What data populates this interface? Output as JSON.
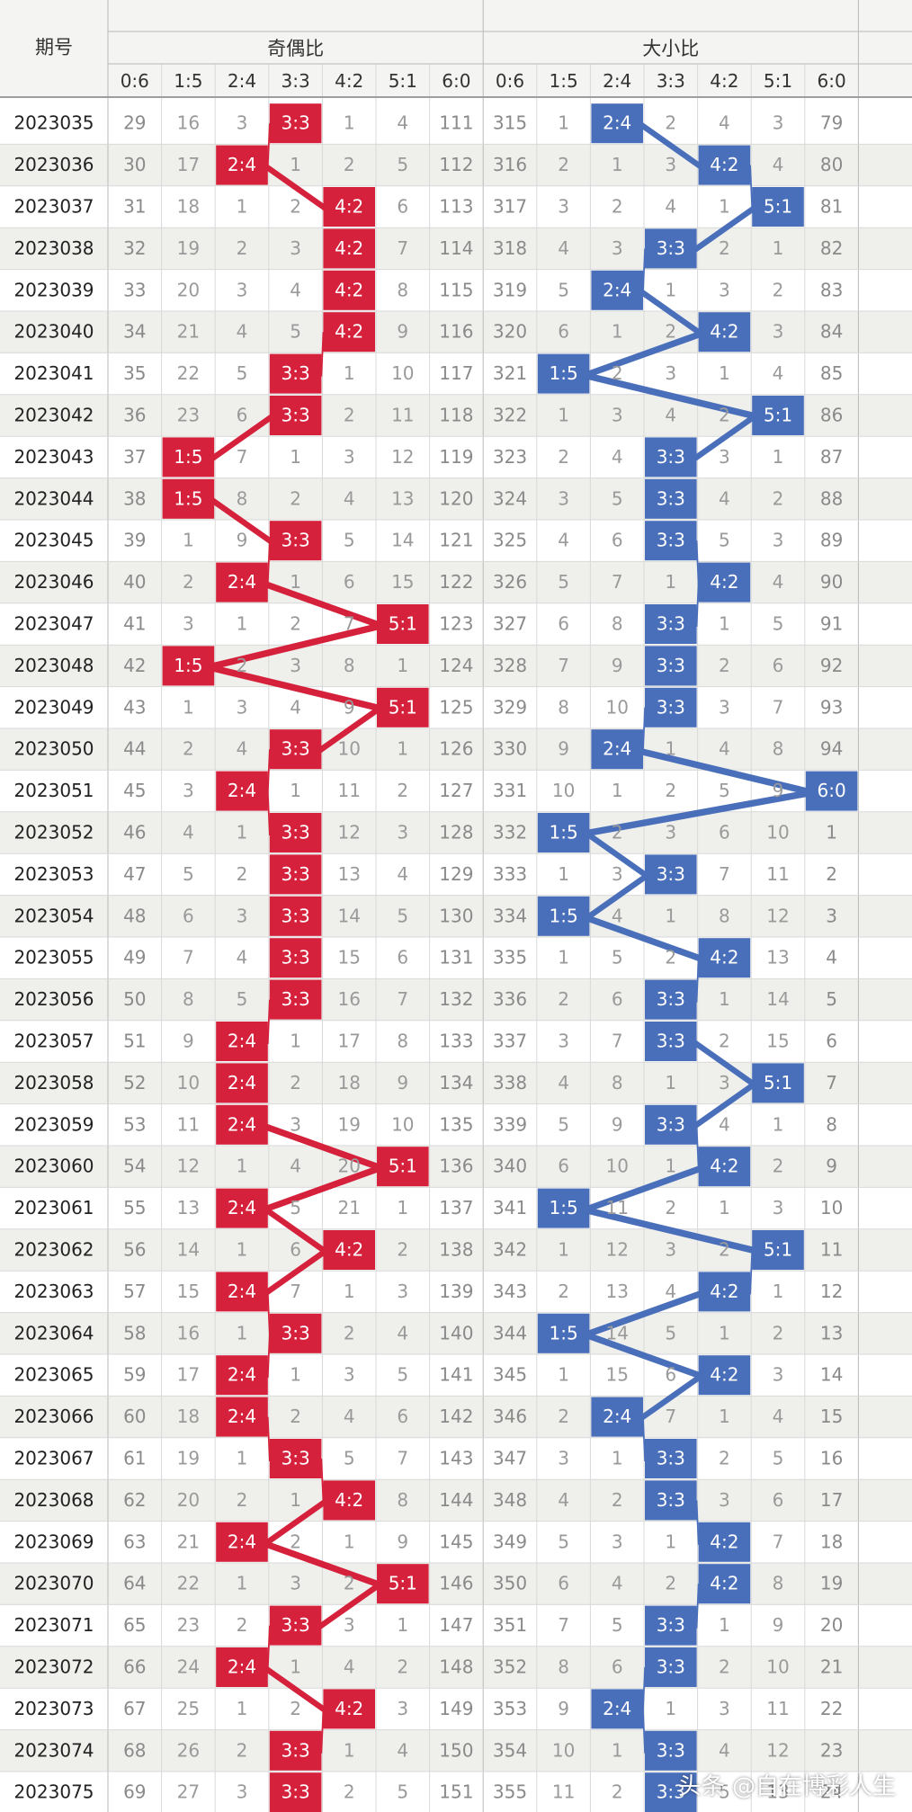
{
  "header": {
    "period_label": "期号",
    "group_odd_even": "奇偶比",
    "group_big_small": "大小比",
    "ratio_columns": [
      "0:6",
      "1:5",
      "2:4",
      "3:3",
      "4:2",
      "5:1",
      "6:0"
    ]
  },
  "watermark": "头条 @自在博彩人生",
  "colors": {
    "odd_even_hit": "#d5213b",
    "big_small_hit": "#4a6fba",
    "grid": "#d9d9d9",
    "row_alt": "#efefec",
    "text_dark": "#222222",
    "text_light": "#8a8a8a"
  },
  "chart_data": {
    "type": "table",
    "rows": [
      {
        "period": "2023035",
        "odd_even": [
          29,
          16,
          3,
          "3:3",
          1,
          4,
          111
        ],
        "big_small": [
          315,
          1,
          "2:4",
          2,
          4,
          3,
          79
        ]
      },
      {
        "period": "2023036",
        "odd_even": [
          30,
          17,
          "2:4",
          1,
          2,
          5,
          112
        ],
        "big_small": [
          316,
          2,
          1,
          3,
          "4:2",
          4,
          80
        ]
      },
      {
        "period": "2023037",
        "odd_even": [
          31,
          18,
          1,
          2,
          "4:2",
          6,
          113
        ],
        "big_small": [
          317,
          3,
          2,
          4,
          1,
          "5:1",
          81
        ]
      },
      {
        "period": "2023038",
        "odd_even": [
          32,
          19,
          2,
          3,
          "4:2",
          7,
          114
        ],
        "big_small": [
          318,
          4,
          3,
          "3:3",
          2,
          1,
          82
        ]
      },
      {
        "period": "2023039",
        "odd_even": [
          33,
          20,
          3,
          4,
          "4:2",
          8,
          115
        ],
        "big_small": [
          319,
          5,
          "2:4",
          1,
          3,
          2,
          83
        ]
      },
      {
        "period": "2023040",
        "odd_even": [
          34,
          21,
          4,
          5,
          "4:2",
          9,
          116
        ],
        "big_small": [
          320,
          6,
          1,
          2,
          "4:2",
          3,
          84
        ]
      },
      {
        "period": "2023041",
        "odd_even": [
          35,
          22,
          5,
          "3:3",
          1,
          10,
          117
        ],
        "big_small": [
          321,
          "1:5",
          2,
          3,
          1,
          4,
          85
        ]
      },
      {
        "period": "2023042",
        "odd_even": [
          36,
          23,
          6,
          "3:3",
          2,
          11,
          118
        ],
        "big_small": [
          322,
          1,
          3,
          4,
          2,
          "5:1",
          86
        ]
      },
      {
        "period": "2023043",
        "odd_even": [
          37,
          "1:5",
          7,
          1,
          3,
          12,
          119
        ],
        "big_small": [
          323,
          2,
          4,
          "3:3",
          3,
          1,
          87
        ]
      },
      {
        "period": "2023044",
        "odd_even": [
          38,
          "1:5",
          8,
          2,
          4,
          13,
          120
        ],
        "big_small": [
          324,
          3,
          5,
          "3:3",
          4,
          2,
          88
        ]
      },
      {
        "period": "2023045",
        "odd_even": [
          39,
          1,
          9,
          "3:3",
          5,
          14,
          121
        ],
        "big_small": [
          325,
          4,
          6,
          "3:3",
          5,
          3,
          89
        ]
      },
      {
        "period": "2023046",
        "odd_even": [
          40,
          2,
          "2:4",
          1,
          6,
          15,
          122
        ],
        "big_small": [
          326,
          5,
          7,
          1,
          "4:2",
          4,
          90
        ]
      },
      {
        "period": "2023047",
        "odd_even": [
          41,
          3,
          1,
          2,
          7,
          "5:1",
          123
        ],
        "big_small": [
          327,
          6,
          8,
          "3:3",
          1,
          5,
          91
        ]
      },
      {
        "period": "2023048",
        "odd_even": [
          42,
          "1:5",
          2,
          3,
          8,
          1,
          124
        ],
        "big_small": [
          328,
          7,
          9,
          "3:3",
          2,
          6,
          92
        ]
      },
      {
        "period": "2023049",
        "odd_even": [
          43,
          1,
          3,
          4,
          9,
          "5:1",
          125
        ],
        "big_small": [
          329,
          8,
          10,
          "3:3",
          3,
          7,
          93
        ]
      },
      {
        "period": "2023050",
        "odd_even": [
          44,
          2,
          4,
          "3:3",
          10,
          1,
          126
        ],
        "big_small": [
          330,
          9,
          "2:4",
          1,
          4,
          8,
          94
        ]
      },
      {
        "period": "2023051",
        "odd_even": [
          45,
          3,
          "2:4",
          1,
          11,
          2,
          127
        ],
        "big_small": [
          331,
          10,
          1,
          2,
          5,
          9,
          "6:0"
        ]
      },
      {
        "period": "2023052",
        "odd_even": [
          46,
          4,
          1,
          "3:3",
          12,
          3,
          128
        ],
        "big_small": [
          332,
          "1:5",
          2,
          3,
          6,
          10,
          1
        ]
      },
      {
        "period": "2023053",
        "odd_even": [
          47,
          5,
          2,
          "3:3",
          13,
          4,
          129
        ],
        "big_small": [
          333,
          1,
          3,
          "3:3",
          7,
          11,
          2
        ]
      },
      {
        "period": "2023054",
        "odd_even": [
          48,
          6,
          3,
          "3:3",
          14,
          5,
          130
        ],
        "big_small": [
          334,
          "1:5",
          4,
          1,
          8,
          12,
          3
        ]
      },
      {
        "period": "2023055",
        "odd_even": [
          49,
          7,
          4,
          "3:3",
          15,
          6,
          131
        ],
        "big_small": [
          335,
          1,
          5,
          2,
          "4:2",
          13,
          4
        ]
      },
      {
        "period": "2023056",
        "odd_even": [
          50,
          8,
          5,
          "3:3",
          16,
          7,
          132
        ],
        "big_small": [
          336,
          2,
          6,
          "3:3",
          1,
          14,
          5
        ]
      },
      {
        "period": "2023057",
        "odd_even": [
          51,
          9,
          "2:4",
          1,
          17,
          8,
          133
        ],
        "big_small": [
          337,
          3,
          7,
          "3:3",
          2,
          15,
          6
        ]
      },
      {
        "period": "2023058",
        "odd_even": [
          52,
          10,
          "2:4",
          2,
          18,
          9,
          134
        ],
        "big_small": [
          338,
          4,
          8,
          1,
          3,
          "5:1",
          7
        ]
      },
      {
        "period": "2023059",
        "odd_even": [
          53,
          11,
          "2:4",
          3,
          19,
          10,
          135
        ],
        "big_small": [
          339,
          5,
          9,
          "3:3",
          4,
          1,
          8
        ]
      },
      {
        "period": "2023060",
        "odd_even": [
          54,
          12,
          1,
          4,
          20,
          "5:1",
          136
        ],
        "big_small": [
          340,
          6,
          10,
          1,
          "4:2",
          2,
          9
        ]
      },
      {
        "period": "2023061",
        "odd_even": [
          55,
          13,
          "2:4",
          5,
          21,
          1,
          137
        ],
        "big_small": [
          341,
          "1:5",
          11,
          2,
          1,
          3,
          10
        ]
      },
      {
        "period": "2023062",
        "odd_even": [
          56,
          14,
          1,
          6,
          "4:2",
          2,
          138
        ],
        "big_small": [
          342,
          1,
          12,
          3,
          2,
          "5:1",
          11
        ]
      },
      {
        "period": "2023063",
        "odd_even": [
          57,
          15,
          "2:4",
          7,
          1,
          3,
          139
        ],
        "big_small": [
          343,
          2,
          13,
          4,
          "4:2",
          1,
          12
        ]
      },
      {
        "period": "2023064",
        "odd_even": [
          58,
          16,
          1,
          "3:3",
          2,
          4,
          140
        ],
        "big_small": [
          344,
          "1:5",
          14,
          5,
          1,
          2,
          13
        ]
      },
      {
        "period": "2023065",
        "odd_even": [
          59,
          17,
          "2:4",
          1,
          3,
          5,
          141
        ],
        "big_small": [
          345,
          1,
          15,
          6,
          "4:2",
          3,
          14
        ]
      },
      {
        "period": "2023066",
        "odd_even": [
          60,
          18,
          "2:4",
          2,
          4,
          6,
          142
        ],
        "big_small": [
          346,
          2,
          "2:4",
          7,
          1,
          4,
          15
        ]
      },
      {
        "period": "2023067",
        "odd_even": [
          61,
          19,
          1,
          "3:3",
          5,
          7,
          143
        ],
        "big_small": [
          347,
          3,
          1,
          "3:3",
          2,
          5,
          16
        ]
      },
      {
        "period": "2023068",
        "odd_even": [
          62,
          20,
          2,
          1,
          "4:2",
          8,
          144
        ],
        "big_small": [
          348,
          4,
          2,
          "3:3",
          3,
          6,
          17
        ]
      },
      {
        "period": "2023069",
        "odd_even": [
          63,
          21,
          "2:4",
          2,
          1,
          9,
          145
        ],
        "big_small": [
          349,
          5,
          3,
          1,
          "4:2",
          7,
          18
        ]
      },
      {
        "period": "2023070",
        "odd_even": [
          64,
          22,
          1,
          3,
          2,
          "5:1",
          146
        ],
        "big_small": [
          350,
          6,
          4,
          2,
          "4:2",
          8,
          19
        ]
      },
      {
        "period": "2023071",
        "odd_even": [
          65,
          23,
          2,
          "3:3",
          3,
          1,
          147
        ],
        "big_small": [
          351,
          7,
          5,
          "3:3",
          1,
          9,
          20
        ]
      },
      {
        "period": "2023072",
        "odd_even": [
          66,
          24,
          "2:4",
          1,
          4,
          2,
          148
        ],
        "big_small": [
          352,
          8,
          6,
          "3:3",
          2,
          10,
          21
        ]
      },
      {
        "period": "2023073",
        "odd_even": [
          67,
          25,
          1,
          2,
          "4:2",
          3,
          149
        ],
        "big_small": [
          353,
          9,
          "2:4",
          1,
          3,
          11,
          22
        ]
      },
      {
        "period": "2023074",
        "odd_even": [
          68,
          26,
          2,
          "3:3",
          1,
          4,
          150
        ],
        "big_small": [
          354,
          10,
          1,
          "3:3",
          4,
          12,
          23
        ]
      },
      {
        "period": "2023075",
        "odd_even": [
          69,
          27,
          3,
          "3:3",
          2,
          5,
          151
        ],
        "big_small": [
          355,
          11,
          2,
          "3:3",
          5,
          13,
          24
        ]
      }
    ]
  }
}
